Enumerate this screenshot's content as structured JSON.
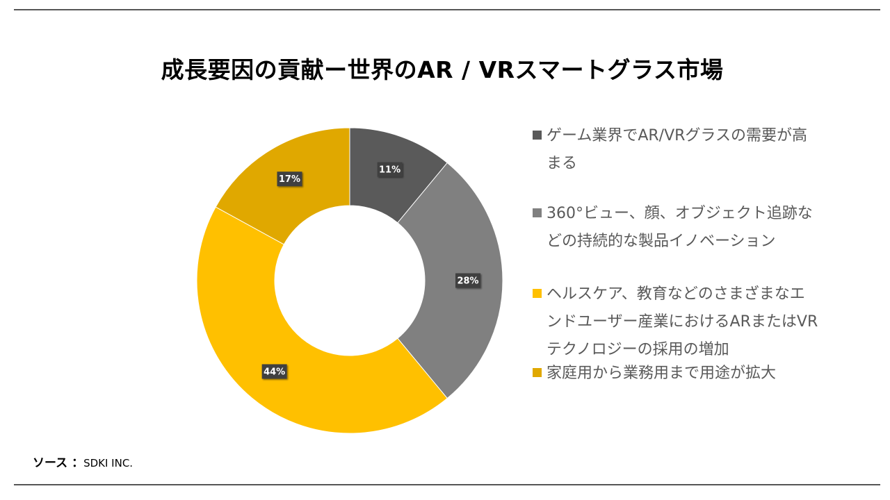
{
  "title": "成長要因の貢献ー世界のAR / VRスマートグラス市場",
  "source": {
    "label": "ソース ：",
    "value": "SDKI INC."
  },
  "colors": {
    "rule": "#555555",
    "label_box": "#404040",
    "label_text": "#ffffff",
    "legend_text": "#595959"
  },
  "chart_data": {
    "type": "donut",
    "title": "成長要因の貢献ー世界のAR / VRスマートグラス市場",
    "legend_position": "right",
    "slices": [
      {
        "label": "ゲーム業界でAR/VRグラスの需要が高まる",
        "value": 11,
        "display": "11%",
        "color": "#5a5a5a",
        "legend_lines": [
          "ゲーム業界でAR/VRグラスの需要が高",
          "まる"
        ]
      },
      {
        "label": "360°ビュー、顔、オブジェクト追跡などの持続的な製品イノベーション",
        "value": 28,
        "display": "28%",
        "color": "#808080",
        "legend_lines": [
          "360°ビュー、顔、オブジェクト追跡な",
          "どの持続的な製品イノベーション"
        ]
      },
      {
        "label": "ヘルスケア、教育などのさまざまなエンドユーザー産業におけるARまたはVRテクノロジーの採用の増加",
        "value": 44,
        "display": "44%",
        "color": "#ffc000",
        "legend_lines": [
          "ヘルスケア、教育などのさまざまなエ",
          "ンドユーザー産業におけるARまたはVR",
          "テクノロジーの採用の増加"
        ]
      },
      {
        "label": "家庭用から業務用まで用途が拡大",
        "value": 17,
        "display": "17%",
        "color": "#e0a800",
        "legend_lines": [
          "家庭用から業務用まで用途が拡大"
        ]
      }
    ]
  }
}
